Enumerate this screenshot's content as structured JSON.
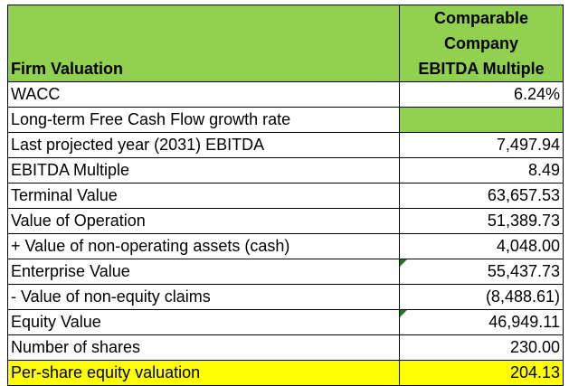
{
  "header": {
    "row_label": "Firm Valuation",
    "column_heading_lines": [
      "Comparable",
      "Company",
      "EBITDA Multiple"
    ]
  },
  "rows": [
    {
      "label": "WACC",
      "value": "6.24%"
    },
    {
      "label": "Long-term Free Cash Flow growth rate",
      "value": ""
    },
    {
      "label": "Last projected year (2031) EBITDA",
      "value": "7,497.94"
    },
    {
      "label": "EBITDA Multiple",
      "value": "8.49"
    },
    {
      "label": "Terminal Value",
      "value": "63,657.53"
    },
    {
      "label": "Value of Operation",
      "value": "51,389.73"
    },
    {
      "label": "+ Value of non-operating assets (cash)",
      "value": "4,048.00"
    },
    {
      "label": "Enterprise Value",
      "value": "55,437.73"
    },
    {
      "label": "- Value of non-equity claims",
      "value": "(8,488.61)"
    },
    {
      "label": "Equity Value",
      "value": "46,949.11"
    },
    {
      "label": "Number of shares",
      "value": "230.00"
    },
    {
      "label": "Per-share equity valuation",
      "value": "204.13"
    }
  ],
  "colors": {
    "header_fill": "#92d050",
    "highlight_fill": "#ffff00",
    "error_indicator": "#1e7a1e"
  }
}
